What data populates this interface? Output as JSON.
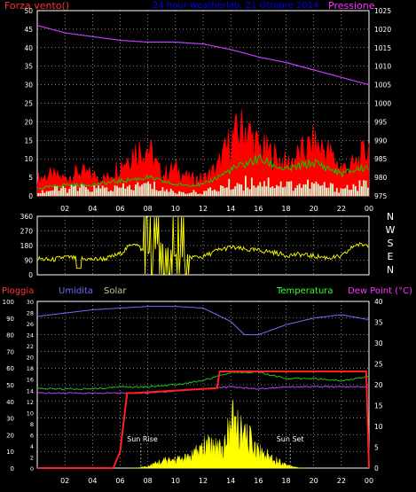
{
  "colors": {
    "background": "#000000",
    "wind": "#ff0000",
    "wind_avg": "#00d000",
    "gust": "#d8ffd8",
    "pressure": "#c040ff",
    "direction": "#ffff00",
    "rain": "#ff2020",
    "humidity": "#7070ff",
    "solar": "#ffff00",
    "temperature": "#20c020",
    "dew_point": "#c040ff",
    "axis_text": "#ffffff",
    "grid": "#ffffff",
    "title": "#0000ff",
    "label_humidity": "#6a6aff",
    "label_solar": "#c8c8a0",
    "label_temp": "#33ff33",
    "label_dew": "#ff33ff",
    "label_rain": "#ff3333"
  },
  "chart_data": [
    {
      "type": "line",
      "title": "24 hour weatherlab, 21 Ottobre 2014",
      "ylabel_left": "Forza vento()",
      "ylabel_right": "Pressione",
      "x_ticks": [
        "02",
        "04",
        "06",
        "08",
        "10",
        "12",
        "14",
        "16",
        "18",
        "20",
        "22",
        "00"
      ],
      "left_ticks": [
        "50",
        "45",
        "40",
        "35",
        "30",
        "25",
        "20",
        "15",
        "10",
        "5",
        "0"
      ],
      "right_ticks": [
        "1025",
        "1020",
        "1015",
        "1010",
        "1005",
        "1000",
        "995",
        "990",
        "985",
        "980",
        "975"
      ],
      "ylim_left": [
        0,
        50
      ],
      "ylim_right": [
        975,
        1025
      ],
      "grid": true,
      "series": [
        {
          "name": "Pressione",
          "axis": "right",
          "x": [
            0,
            2,
            4,
            6,
            8,
            10,
            12,
            14,
            16,
            18,
            20,
            22,
            24
          ],
          "values": [
            1021,
            1019,
            1018,
            1017,
            1016.5,
            1016.5,
            1016,
            1014.5,
            1012.5,
            1011,
            1009,
            1007,
            1005
          ]
        },
        {
          "x": [
            0,
            1,
            2,
            3,
            4,
            5,
            6,
            7,
            8,
            9,
            10,
            11,
            12,
            13,
            14,
            15,
            16,
            17,
            18,
            19,
            20,
            21,
            22,
            23,
            24
          ],
          "values": [
            5,
            6,
            5,
            7,
            6,
            5,
            9,
            13,
            14,
            6,
            8,
            5,
            5,
            8,
            16,
            20,
            14,
            12,
            9,
            12,
            15,
            13,
            8,
            9,
            14
          ]
        },
        {
          "x": [
            0,
            2,
            4,
            6,
            8,
            10,
            12,
            14,
            16,
            18,
            20,
            22,
            24
          ],
          "values": [
            2,
            3,
            3,
            4,
            5,
            3,
            3,
            7,
            10,
            7,
            9,
            6,
            8
          ]
        },
        {
          "x": [
            0,
            2,
            4,
            6,
            8,
            10,
            12,
            14,
            16,
            18,
            20,
            22,
            24
          ],
          "values": [
            1,
            2,
            2,
            2,
            3,
            1,
            1,
            3,
            4,
            3,
            3,
            2,
            3
          ]
        }
      ]
    },
    {
      "type": "line",
      "right_labels": [
        "N",
        "W",
        "S",
        "E",
        "N"
      ],
      "left_ticks": [
        "360",
        "270",
        "180",
        "90",
        "0"
      ],
      "ylim": [
        0,
        360
      ],
      "x": [
        0,
        1,
        2,
        3,
        4,
        5,
        6,
        7,
        8,
        9,
        10,
        11,
        12,
        13,
        14,
        15,
        16,
        17,
        18,
        19,
        20,
        21,
        22,
        23,
        24
      ],
      "values": [
        100,
        90,
        110,
        100,
        95,
        100,
        130,
        200,
        120,
        200,
        120,
        110,
        110,
        150,
        170,
        155,
        150,
        140,
        120,
        125,
        115,
        105,
        110,
        185,
        185
      ]
    },
    {
      "type": "line",
      "labels": [
        "Pioggia",
        "Umidita",
        "Solar",
        "Temperatura",
        "Dew Point (°C)"
      ],
      "x_ticks": [
        "02",
        "04",
        "06",
        "08",
        "10",
        "12",
        "14",
        "16",
        "18",
        "20",
        "22",
        "00"
      ],
      "rain_ticks": [
        "100",
        "90",
        "80",
        "70",
        "60",
        "50",
        "40",
        "30",
        "20",
        "10",
        "0"
      ],
      "humidity_ticks": [
        "30",
        "28",
        "26",
        "24",
        "22",
        "20",
        "18",
        "16",
        "14",
        "12",
        "10",
        "8",
        "6",
        "4",
        "2",
        "0"
      ],
      "temp_ticks": [
        "40",
        "35",
        "30",
        "25",
        "20",
        "15",
        "10",
        "5",
        "0"
      ],
      "annotations": [
        "Sun Rise",
        "Sun Set"
      ],
      "ylim_temp": [
        0,
        40
      ],
      "grid": true,
      "series": [
        {
          "name": "Umidita",
          "x": [
            0,
            2,
            4,
            6,
            8,
            10,
            12,
            14,
            15,
            16,
            17,
            18,
            20,
            22,
            24
          ],
          "values": [
            91,
            93,
            95,
            96,
            97,
            97,
            96,
            88,
            80,
            80,
            83,
            86,
            90,
            92,
            89
          ]
        },
        {
          "name": "Temperatura",
          "x": [
            0,
            2,
            4,
            6,
            8,
            10,
            12,
            14,
            16,
            18,
            20,
            22,
            24
          ],
          "values": [
            19,
            19,
            19,
            19.5,
            19.5,
            20,
            21,
            23,
            23,
            21.5,
            21.5,
            21,
            22
          ]
        },
        {
          "name": "Dew Point (°C)",
          "x": [
            0,
            2,
            4,
            6,
            8,
            10,
            12,
            14,
            16,
            18,
            20,
            22,
            24
          ],
          "values": [
            18,
            18,
            18,
            18,
            18,
            18.5,
            19,
            19.5,
            19,
            19.5,
            19.5,
            19.5,
            19.5
          ]
        },
        {
          "name": "Pioggia",
          "x": [
            0,
            5.5,
            6,
            6.5,
            7,
            13,
            13.2,
            23.8,
            24
          ],
          "values": [
            0,
            0,
            10,
            45,
            45,
            48,
            58,
            58,
            0
          ]
        },
        {
          "name": "Solar",
          "x": [
            7,
            8,
            9,
            10,
            11,
            12,
            13,
            13.5,
            14,
            14.5,
            15,
            15.5,
            16,
            17,
            18,
            19
          ],
          "values": [
            0,
            0.5,
            2,
            2.5,
            3,
            6,
            7,
            5,
            14,
            12,
            9,
            8,
            5,
            3,
            1,
            0
          ]
        }
      ]
    }
  ]
}
